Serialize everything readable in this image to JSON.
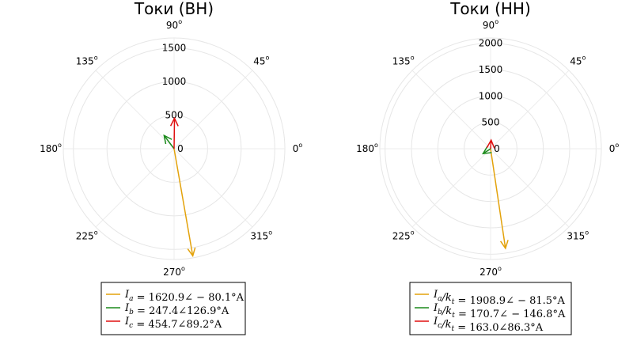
{
  "chart_data": [
    {
      "type": "polar-phasor",
      "title": "Токи (ВН)",
      "angle_unit": "deg",
      "angle_ticks": [
        {
          "deg": 0,
          "label": "0",
          "sup": "o"
        },
        {
          "deg": 45,
          "label": "45",
          "sup": "o"
        },
        {
          "deg": 90,
          "label": "90",
          "sup": "o"
        },
        {
          "deg": 135,
          "label": "135",
          "sup": "o"
        },
        {
          "deg": 180,
          "label": "180",
          "sup": "o"
        },
        {
          "deg": 225,
          "label": "225",
          "sup": "o"
        },
        {
          "deg": 270,
          "label": "270",
          "sup": "o"
        },
        {
          "deg": 315,
          "label": "315",
          "sup": "o"
        }
      ],
      "rmax": 1650,
      "radial_ticks": [
        0,
        500,
        1000,
        1500
      ],
      "grid": true,
      "legend_placement": "bottom",
      "series": [
        {
          "name": "I_a = 1620.9∠ − 80.1°A",
          "magnitude": 1620.9,
          "angle": -80.1,
          "color": "#e3a20b"
        },
        {
          "name": "I_b = 247.4∠126.9°A",
          "magnitude": 247.4,
          "angle": 126.9,
          "color": "#1a8a1a"
        },
        {
          "name": "I_c = 454.7∠89.2°A",
          "magnitude": 454.7,
          "angle": 89.2,
          "color": "#e01010"
        }
      ]
    },
    {
      "type": "polar-phasor",
      "title": "Токи (НН)",
      "angle_unit": "deg",
      "angle_ticks": [
        {
          "deg": 0,
          "label": "0",
          "sup": "o"
        },
        {
          "deg": 45,
          "label": "45",
          "sup": "o"
        },
        {
          "deg": 90,
          "label": "90",
          "sup": "o"
        },
        {
          "deg": 135,
          "label": "135",
          "sup": "o"
        },
        {
          "deg": 180,
          "label": "180",
          "sup": "o"
        },
        {
          "deg": 225,
          "label": "225",
          "sup": "o"
        },
        {
          "deg": 270,
          "label": "270",
          "sup": "o"
        },
        {
          "deg": 315,
          "label": "315",
          "sup": "o"
        }
      ],
      "rmax": 2100,
      "radial_ticks": [
        0,
        500,
        1000,
        1500,
        2000
      ],
      "grid": true,
      "legend_placement": "bottom",
      "series": [
        {
          "name": "I_a/k_t = 1908.9∠ − 81.5°A",
          "magnitude": 1908.9,
          "angle": -81.5,
          "color": "#e3a20b"
        },
        {
          "name": "I_b/k_t = 170.7∠ − 146.8°A",
          "magnitude": 170.7,
          "angle": -146.8,
          "color": "#1a8a1a"
        },
        {
          "name": "I_c/k_t = 163.0∠86.3°A",
          "magnitude": 163.0,
          "angle": 86.3,
          "color": "#e01010"
        }
      ]
    }
  ]
}
